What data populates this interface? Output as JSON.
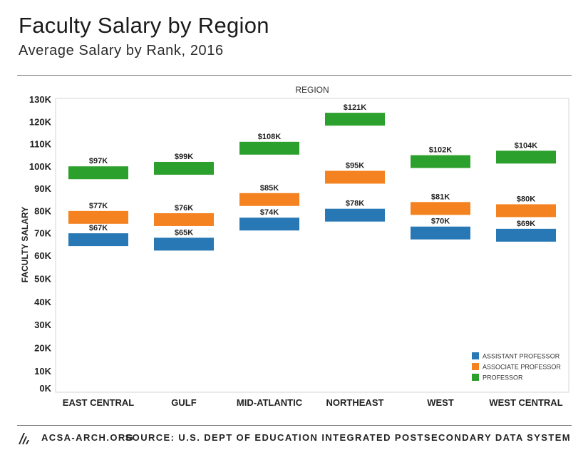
{
  "header": {
    "title": "Faculty Salary by Region",
    "subtitle": "Average Salary by Rank, 2016"
  },
  "footer": {
    "site": "ACSA-ARCH.ORG",
    "source": "SOURCE: U.S. DEPT OF EDUCATION INTEGRATED POSTSECONDARY DATA SYSTEM",
    "logo_icon": "acsa-logo-icon"
  },
  "chart_data": {
    "type": "bar",
    "title": "REGION",
    "xlabel": "",
    "ylabel": "FACULTY SALARY",
    "ylim": [
      0,
      130
    ],
    "y_ticks": [
      {
        "value": 0,
        "label": "0K"
      },
      {
        "value": 10,
        "label": "10K"
      },
      {
        "value": 20,
        "label": "20K"
      },
      {
        "value": 30,
        "label": "30K"
      },
      {
        "value": 40,
        "label": "40K"
      },
      {
        "value": 50,
        "label": "50K"
      },
      {
        "value": 60,
        "label": "60K"
      },
      {
        "value": 70,
        "label": "70K"
      },
      {
        "value": 80,
        "label": "80K"
      },
      {
        "value": 90,
        "label": "90K"
      },
      {
        "value": 100,
        "label": "100K"
      },
      {
        "value": 110,
        "label": "110K"
      },
      {
        "value": 120,
        "label": "120K"
      },
      {
        "value": 130,
        "label": "130K"
      }
    ],
    "categories": [
      "EAST CENTRAL",
      "GULF",
      "MID-ATLANTIC",
      "NORTHEAST",
      "WEST",
      "WEST CENTRAL"
    ],
    "series": [
      {
        "name": "ASSISTANT PROFESSOR",
        "color": "#2878b5",
        "values": [
          67,
          65,
          74,
          78,
          70,
          69
        ],
        "labels": [
          "$67K",
          "$65K",
          "$74K",
          "$78K",
          "$70K",
          "$69K"
        ]
      },
      {
        "name": "ASSOCIATE PROFESSOR",
        "color": "#f58220",
        "values": [
          77,
          76,
          85,
          95,
          81,
          80
        ],
        "labels": [
          "$77K",
          "$76K",
          "$85K",
          "$95K",
          "$81K",
          "$80K"
        ]
      },
      {
        "name": "PROFESSOR",
        "color": "#2ca02c",
        "values": [
          97,
          99,
          108,
          121,
          102,
          104
        ],
        "labels": [
          "$97K",
          "$99K",
          "$108K",
          "$121K",
          "$102K",
          "$104K"
        ]
      }
    ],
    "legend_position": "bottom-right",
    "grid": false
  }
}
